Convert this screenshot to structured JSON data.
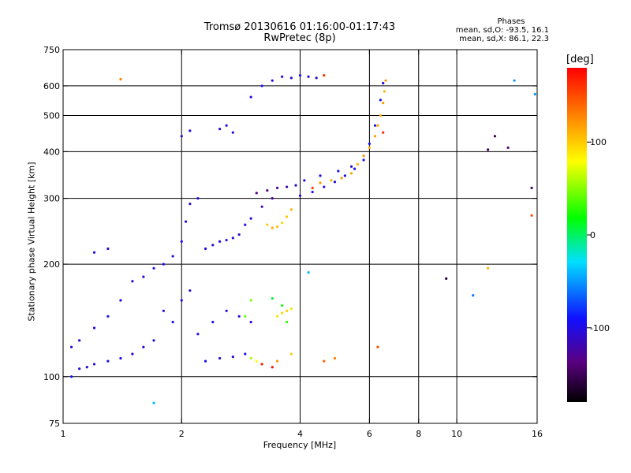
{
  "header": {
    "title_line1": "Tromsø 20130616 01:16:00-01:17:43",
    "title_line2": "RwPretec (8p)"
  },
  "stats": {
    "heading": "Phases",
    "line_o": "mean, sd,O: -93.5, 16.1",
    "line_x": "mean, sd,X: 86.1, 22.3"
  },
  "colorbar": {
    "unit": "[deg]",
    "ticks": [
      "100",
      "0",
      "-100"
    ],
    "tick_values": [
      100,
      0,
      -100
    ],
    "range": [
      -180,
      180
    ]
  },
  "chart_data": {
    "type": "scatter",
    "title": "Tromsø 20130616 01:16:00-01:17:43",
    "subtitle": "RwPretec (8p)",
    "xlabel": "Frequency [MHz]",
    "ylabel": "Stationary phase Virtual Height [km]",
    "xscale": "log",
    "yscale": "log",
    "xlim": [
      1,
      16
    ],
    "ylim": [
      75,
      750
    ],
    "grid": true,
    "x_ticks": [
      1,
      2,
      4,
      6,
      8,
      10,
      16
    ],
    "x_tick_labels": [
      "1",
      "2",
      "4",
      "6",
      "8",
      "10",
      "16"
    ],
    "y_ticks": [
      75,
      100,
      200,
      300,
      400,
      500,
      600,
      750
    ],
    "y_tick_labels": [
      "75",
      "100",
      "200",
      "300",
      "400",
      "500",
      "600",
      "750"
    ],
    "x_grid": [
      2,
      4,
      6,
      8,
      10
    ],
    "y_grid": [
      100,
      200,
      300,
      400,
      500,
      600
    ],
    "series": [
      {
        "points": [
          [
            1.05,
            100,
            -95
          ],
          [
            1.1,
            105,
            -100
          ],
          [
            1.15,
            106,
            -105
          ],
          [
            1.2,
            108,
            -100
          ],
          [
            1.3,
            110,
            -95
          ],
          [
            1.4,
            112,
            -100
          ],
          [
            1.5,
            115,
            -105
          ],
          [
            1.6,
            120,
            -100
          ],
          [
            1.7,
            125,
            -95
          ],
          [
            1.05,
            120,
            -100
          ],
          [
            1.1,
            125,
            -105
          ],
          [
            1.2,
            135,
            -100
          ],
          [
            1.3,
            145,
            -95
          ],
          [
            1.4,
            160,
            -100
          ],
          [
            1.5,
            180,
            -105
          ],
          [
            1.6,
            185,
            -100
          ],
          [
            1.7,
            195,
            -95
          ],
          [
            1.8,
            200,
            -100
          ],
          [
            1.2,
            215,
            -100
          ],
          [
            1.3,
            220,
            -105
          ],
          [
            1.9,
            210,
            -100
          ],
          [
            2.0,
            230,
            -95
          ],
          [
            2.05,
            260,
            -100
          ],
          [
            2.1,
            290,
            -105
          ],
          [
            2.2,
            300,
            -100
          ],
          [
            1.8,
            150,
            -100
          ],
          [
            1.9,
            140,
            -95
          ],
          [
            2.0,
            160,
            -100
          ],
          [
            2.1,
            170,
            -105
          ],
          [
            2.2,
            130,
            -100
          ],
          [
            2.4,
            140,
            -95
          ],
          [
            2.6,
            150,
            -100
          ],
          [
            2.8,
            145,
            -105
          ],
          [
            3.0,
            140,
            -100
          ],
          [
            2.3,
            110,
            -95
          ],
          [
            2.5,
            112,
            -100
          ],
          [
            2.7,
            113,
            -105
          ],
          [
            2.9,
            115,
            -100
          ],
          [
            2.3,
            220,
            -100
          ],
          [
            2.4,
            225,
            -105
          ],
          [
            2.5,
            230,
            -100
          ],
          [
            2.6,
            232,
            -95
          ],
          [
            2.7,
            235,
            -100
          ],
          [
            2.8,
            240,
            -105
          ],
          [
            2.9,
            255,
            -100
          ],
          [
            3.0,
            265,
            -110
          ],
          [
            3.2,
            285,
            -120
          ],
          [
            3.4,
            300,
            -125
          ],
          [
            3.1,
            310,
            -130
          ],
          [
            3.3,
            315,
            -135
          ],
          [
            3.5,
            320,
            -125
          ],
          [
            3.7,
            322,
            -120
          ],
          [
            3.9,
            325,
            -110
          ],
          [
            4.0,
            305,
            -100
          ],
          [
            4.3,
            312,
            -95
          ],
          [
            4.6,
            322,
            -100
          ],
          [
            4.9,
            332,
            -105
          ],
          [
            5.2,
            345,
            -100
          ],
          [
            5.5,
            360,
            -95
          ],
          [
            5.8,
            380,
            -100
          ],
          [
            6.0,
            420,
            -100
          ],
          [
            6.2,
            470,
            -95
          ],
          [
            6.4,
            550,
            -100
          ],
          [
            6.5,
            610,
            -100
          ],
          [
            4.1,
            335,
            -100
          ],
          [
            4.5,
            345,
            -95
          ],
          [
            5.0,
            355,
            -100
          ],
          [
            5.4,
            365,
            -105
          ],
          [
            2.0,
            440,
            -100
          ],
          [
            2.1,
            455,
            -95
          ],
          [
            2.5,
            460,
            -100
          ],
          [
            2.6,
            470,
            -105
          ],
          [
            2.7,
            450,
            -100
          ],
          [
            3.0,
            560,
            -100
          ],
          [
            3.2,
            600,
            -95
          ],
          [
            3.4,
            620,
            -100
          ],
          [
            3.6,
            635,
            -105
          ],
          [
            3.8,
            630,
            -100
          ],
          [
            4.0,
            640,
            -95
          ],
          [
            4.2,
            635,
            -100
          ],
          [
            4.4,
            630,
            -105
          ]
        ]
      },
      {
        "points": [
          [
            3.3,
            255,
            100
          ],
          [
            3.4,
            250,
            110
          ],
          [
            3.5,
            252,
            105
          ],
          [
            3.6,
            258,
            95
          ],
          [
            3.7,
            268,
            100
          ],
          [
            3.8,
            280,
            110
          ],
          [
            3.5,
            145,
            90
          ],
          [
            3.6,
            148,
            95
          ],
          [
            3.7,
            150,
            100
          ],
          [
            3.8,
            152,
            90
          ],
          [
            3.0,
            112,
            60
          ],
          [
            3.1,
            110,
            80
          ],
          [
            3.2,
            108,
            70
          ],
          [
            3.5,
            110,
            120
          ],
          [
            3.8,
            115,
            100
          ],
          [
            4.5,
            330,
            120
          ],
          [
            4.8,
            335,
            110
          ],
          [
            5.1,
            340,
            120
          ],
          [
            5.4,
            350,
            115
          ],
          [
            5.6,
            370,
            110
          ],
          [
            5.8,
            390,
            120
          ],
          [
            6.0,
            410,
            110
          ],
          [
            6.2,
            440,
            120
          ],
          [
            6.3,
            470,
            115
          ],
          [
            6.4,
            500,
            110
          ],
          [
            6.5,
            540,
            120
          ],
          [
            6.55,
            580,
            110
          ],
          [
            6.6,
            620,
            120
          ],
          [
            4.6,
            110,
            140
          ],
          [
            4.9,
            112,
            130
          ],
          [
            6.3,
            120,
            150
          ],
          [
            1.4,
            625,
            130
          ],
          [
            12,
            195,
            110
          ],
          [
            15.5,
            270,
            150
          ]
        ]
      },
      {
        "points": [
          [
            3.2,
            108,
            170
          ],
          [
            3.4,
            106,
            175
          ],
          [
            4.3,
            320,
            160
          ],
          [
            6.5,
            450,
            165
          ],
          [
            4.6,
            640,
            160
          ]
        ]
      },
      {
        "points": [
          [
            3.4,
            162,
            10
          ],
          [
            3.6,
            155,
            20
          ],
          [
            3.7,
            140,
            30
          ],
          [
            2.9,
            145,
            40
          ],
          [
            3.0,
            160,
            45
          ]
        ]
      },
      {
        "points": [
          [
            14,
            620,
            -50
          ],
          [
            11,
            165,
            -60
          ],
          [
            1.7,
            85,
            -40
          ],
          [
            15.8,
            570,
            -50
          ],
          [
            4.2,
            190,
            -40
          ]
        ]
      },
      {
        "points": [
          [
            9.4,
            183,
            -160
          ],
          [
            12,
            405,
            -150
          ],
          [
            12.5,
            440,
            -150
          ],
          [
            15.5,
            320,
            -150
          ],
          [
            13.5,
            410,
            -140
          ]
        ]
      }
    ]
  }
}
